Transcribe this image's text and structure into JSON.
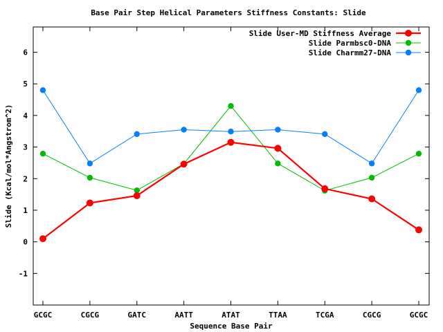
{
  "chart_data": {
    "type": "line",
    "title": "Base Pair Step Helical Parameters Stiffness Constants: Slide",
    "xlabel": "Sequence Base Pair",
    "ylabel": "Slide (Kcal/mol*Angstrom^2)",
    "categories": [
      "GCGC",
      "CGCG",
      "GATC",
      "AATT",
      "ATAT",
      "TTAA",
      "TCGA",
      "CGCG",
      "GCGC"
    ],
    "ylim": [
      -2,
      6.8
    ],
    "yticks": [
      -1,
      0,
      1,
      2,
      3,
      4,
      5,
      6
    ],
    "ytick_labels": [
      "-1",
      "0",
      "1",
      "2",
      "3",
      "4",
      "5",
      "6"
    ],
    "grid": false,
    "legend_position": "top-right",
    "series": [
      {
        "name": "Slide User-MD Stiffness Average",
        "color": "#ff0000",
        "values": [
          0.1,
          1.23,
          1.46,
          2.46,
          3.15,
          2.96,
          1.68,
          1.36,
          0.38
        ]
      },
      {
        "name": "Slide Parmbsc0-DNA",
        "color": "#00bb00",
        "values": [
          2.79,
          2.03,
          1.63,
          2.47,
          4.3,
          2.48,
          1.62,
          2.03,
          2.79
        ]
      },
      {
        "name": "Slide Charmm27-DNA",
        "color": "#0080ff",
        "values": [
          4.8,
          2.48,
          3.41,
          3.55,
          3.49,
          3.55,
          3.41,
          2.48,
          4.8
        ]
      }
    ]
  }
}
